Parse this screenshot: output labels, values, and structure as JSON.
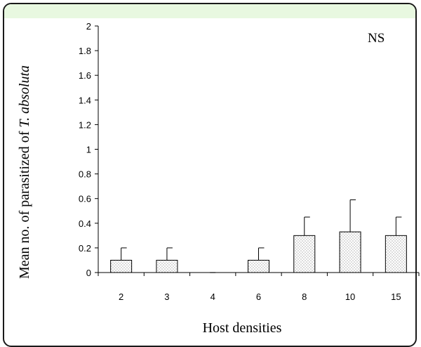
{
  "colors": {
    "frame_border": "#1a1a1a",
    "header_strip": "#e8f8e0",
    "bar_fill": "#ffffff",
    "bar_dots": "#555555",
    "axis": "#000000"
  },
  "chart_data": {
    "type": "bar",
    "title": "",
    "xlabel": "Host densities",
    "ylabel_prefix": "Mean no. of parasitized of ",
    "ylabel_italic": "T. absoluta",
    "annotation": "NS",
    "categories": [
      "2",
      "3",
      "4",
      "6",
      "8",
      "10",
      "15"
    ],
    "values": [
      0.1,
      0.1,
      0,
      0.1,
      0.3,
      0.33,
      0.3
    ],
    "errors": [
      0.1,
      0.1,
      0,
      0.1,
      0.15,
      0.26,
      0.15
    ],
    "ylim": [
      0,
      2
    ],
    "yticks": [
      "0",
      "0.2",
      "0.4",
      "0.6",
      "0.8",
      "1",
      "1.2",
      "1.4",
      "1.6",
      "1.8",
      "2"
    ],
    "grid": false,
    "legend": "none"
  }
}
